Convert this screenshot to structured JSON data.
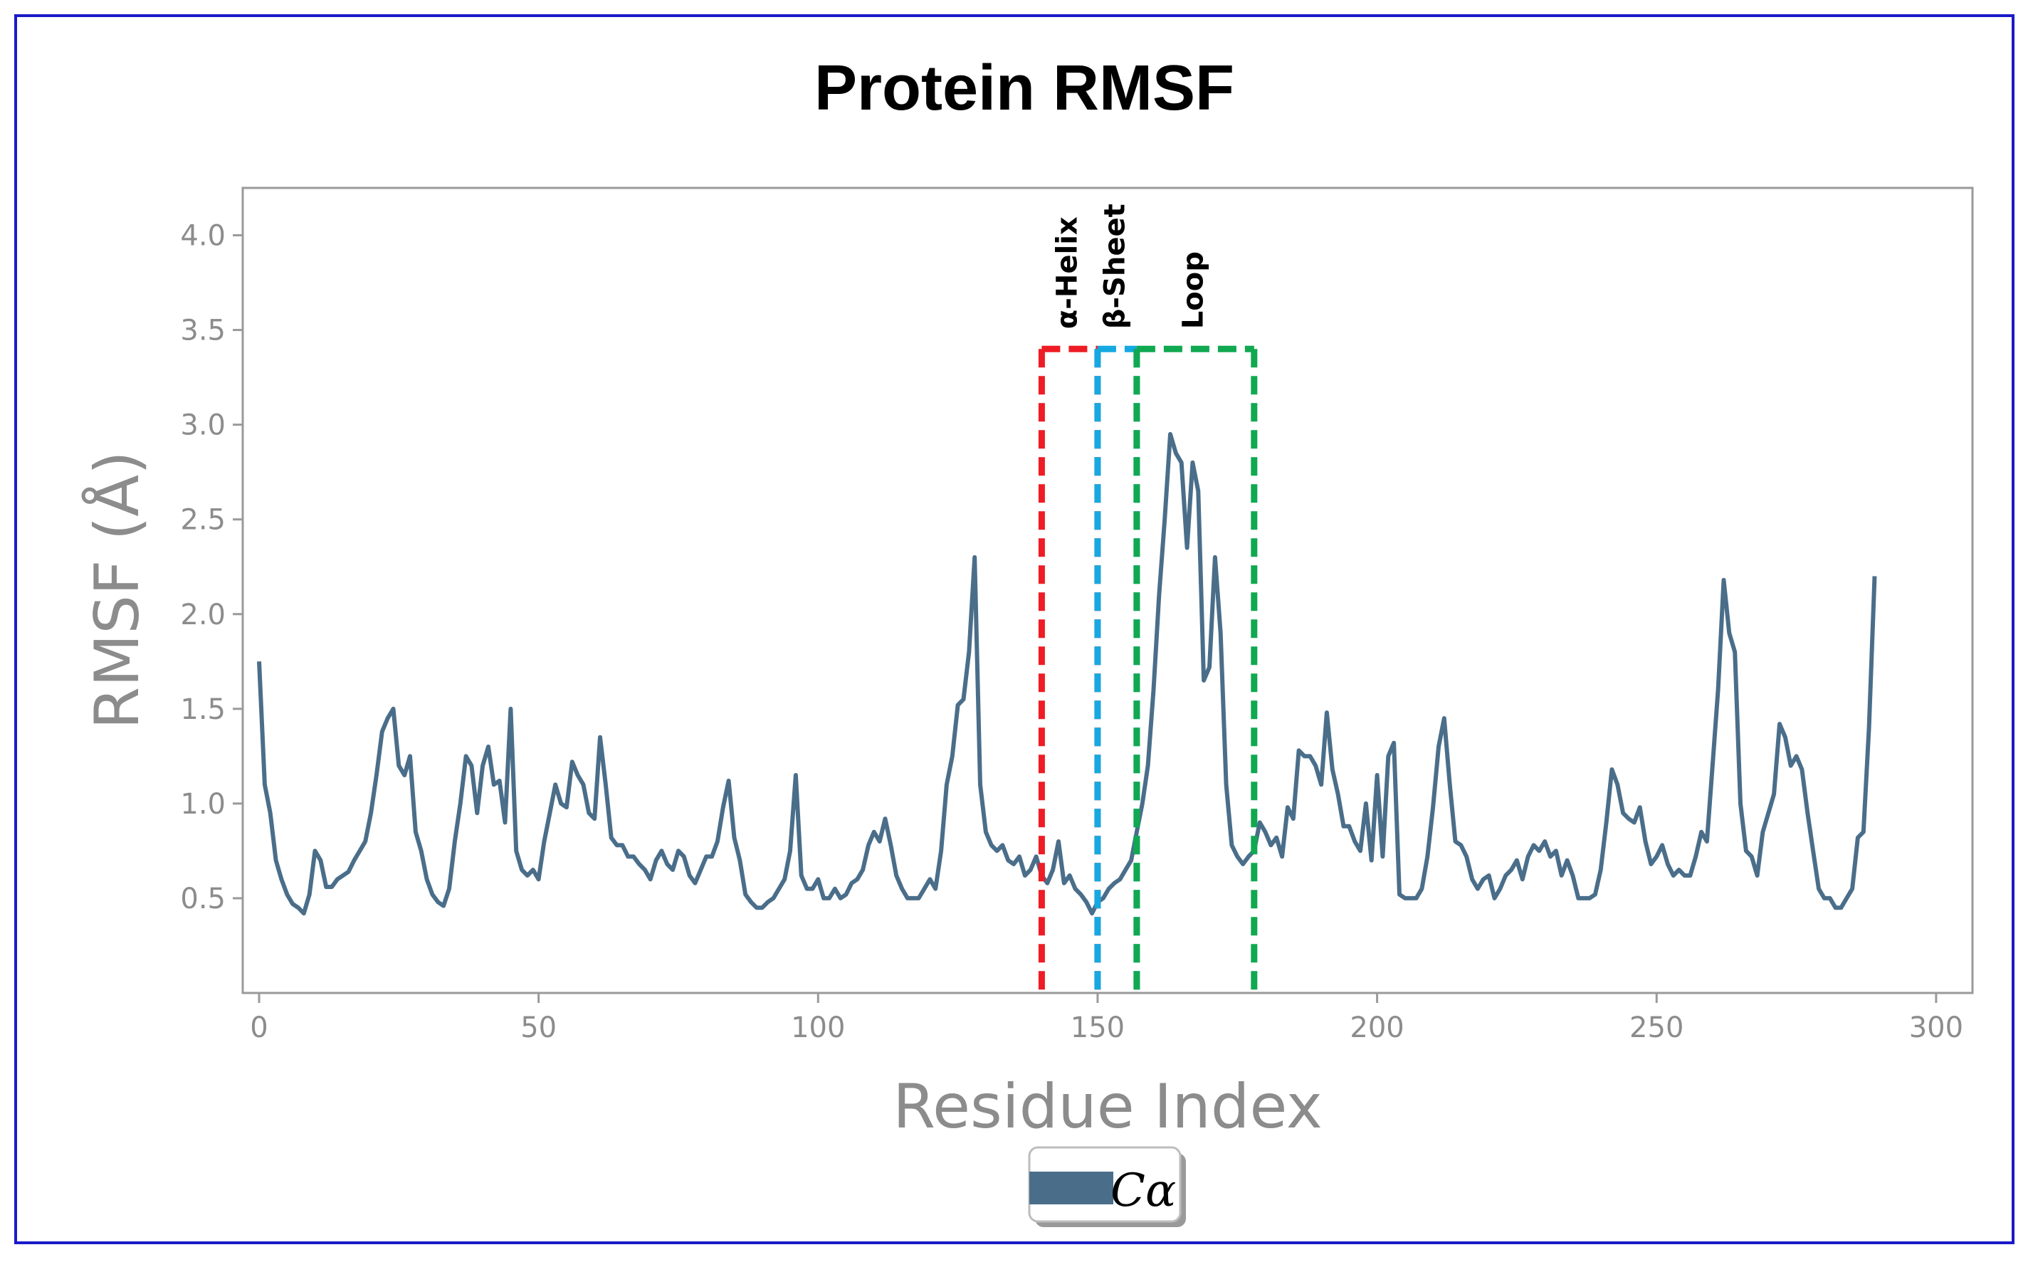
{
  "chart_data": {
    "type": "line",
    "title": "Protein RMSF",
    "xlabel": "Residue Index",
    "ylabel": "RMSF (Å)",
    "xlim": [
      0,
      306
    ],
    "ylim": [
      0,
      4.25
    ],
    "x_ticks": [
      0,
      50,
      100,
      150,
      200,
      250,
      300
    ],
    "y_ticks": [
      0.5,
      1.0,
      1.5,
      2.0,
      2.5,
      3.0,
      3.5,
      4.0
    ],
    "x_tick_labels": [
      "0",
      "50",
      "100",
      "150",
      "200",
      "250",
      "300"
    ],
    "y_tick_labels": [
      "0.5",
      "1.0",
      "1.5",
      "2.0",
      "2.5",
      "3.0",
      "3.5",
      "4.0"
    ],
    "grid": false,
    "legend": {
      "label": "Cα",
      "position": "bottom-center"
    },
    "series": [
      {
        "name": "Cα",
        "color": "#4a6e8a",
        "points": [
          [
            0,
            1.75
          ],
          [
            1,
            1.1
          ],
          [
            2,
            0.95
          ],
          [
            3,
            0.7
          ],
          [
            4,
            0.6
          ],
          [
            5,
            0.52
          ],
          [
            6,
            0.47
          ],
          [
            7,
            0.45
          ],
          [
            8,
            0.42
          ],
          [
            9,
            0.52
          ],
          [
            10,
            0.75
          ],
          [
            11,
            0.7
          ],
          [
            12,
            0.56
          ],
          [
            13,
            0.56
          ],
          [
            14,
            0.6
          ],
          [
            15,
            0.62
          ],
          [
            16,
            0.64
          ],
          [
            17,
            0.7
          ],
          [
            18,
            0.75
          ],
          [
            19,
            0.8
          ],
          [
            20,
            0.95
          ],
          [
            21,
            1.15
          ],
          [
            22,
            1.38
          ],
          [
            23,
            1.45
          ],
          [
            24,
            1.5
          ],
          [
            25,
            1.2
          ],
          [
            26,
            1.15
          ],
          [
            27,
            1.25
          ],
          [
            28,
            0.85
          ],
          [
            29,
            0.75
          ],
          [
            30,
            0.6
          ],
          [
            31,
            0.52
          ],
          [
            32,
            0.48
          ],
          [
            33,
            0.46
          ],
          [
            34,
            0.55
          ],
          [
            35,
            0.8
          ],
          [
            36,
            1.0
          ],
          [
            37,
            1.25
          ],
          [
            38,
            1.2
          ],
          [
            39,
            0.95
          ],
          [
            40,
            1.2
          ],
          [
            41,
            1.3
          ],
          [
            42,
            1.1
          ],
          [
            43,
            1.12
          ],
          [
            44,
            0.9
          ],
          [
            45,
            1.5
          ],
          [
            46,
            0.75
          ],
          [
            47,
            0.65
          ],
          [
            48,
            0.62
          ],
          [
            49,
            0.65
          ],
          [
            50,
            0.6
          ],
          [
            51,
            0.8
          ],
          [
            52,
            0.95
          ],
          [
            53,
            1.1
          ],
          [
            54,
            1.0
          ],
          [
            55,
            0.98
          ],
          [
            56,
            1.22
          ],
          [
            57,
            1.15
          ],
          [
            58,
            1.1
          ],
          [
            59,
            0.95
          ],
          [
            60,
            0.92
          ],
          [
            61,
            1.35
          ],
          [
            62,
            1.1
          ],
          [
            63,
            0.82
          ],
          [
            64,
            0.78
          ],
          [
            65,
            0.78
          ],
          [
            66,
            0.72
          ],
          [
            67,
            0.72
          ],
          [
            68,
            0.68
          ],
          [
            69,
            0.65
          ],
          [
            70,
            0.6
          ],
          [
            71,
            0.7
          ],
          [
            72,
            0.75
          ],
          [
            73,
            0.68
          ],
          [
            74,
            0.65
          ],
          [
            75,
            0.75
          ],
          [
            76,
            0.72
          ],
          [
            77,
            0.62
          ],
          [
            78,
            0.58
          ],
          [
            79,
            0.65
          ],
          [
            80,
            0.72
          ],
          [
            81,
            0.72
          ],
          [
            82,
            0.8
          ],
          [
            83,
            0.98
          ],
          [
            84,
            1.12
          ],
          [
            85,
            0.82
          ],
          [
            86,
            0.7
          ],
          [
            87,
            0.52
          ],
          [
            88,
            0.48
          ],
          [
            89,
            0.45
          ],
          [
            90,
            0.45
          ],
          [
            91,
            0.48
          ],
          [
            92,
            0.5
          ],
          [
            93,
            0.55
          ],
          [
            94,
            0.6
          ],
          [
            95,
            0.75
          ],
          [
            96,
            1.15
          ],
          [
            97,
            0.62
          ],
          [
            98,
            0.55
          ],
          [
            99,
            0.55
          ],
          [
            100,
            0.6
          ],
          [
            101,
            0.5
          ],
          [
            102,
            0.5
          ],
          [
            103,
            0.55
          ],
          [
            104,
            0.5
          ],
          [
            105,
            0.52
          ],
          [
            106,
            0.58
          ],
          [
            107,
            0.6
          ],
          [
            108,
            0.65
          ],
          [
            109,
            0.78
          ],
          [
            110,
            0.85
          ],
          [
            111,
            0.8
          ],
          [
            112,
            0.92
          ],
          [
            113,
            0.78
          ],
          [
            114,
            0.62
          ],
          [
            115,
            0.55
          ],
          [
            116,
            0.5
          ],
          [
            117,
            0.5
          ],
          [
            118,
            0.5
          ],
          [
            119,
            0.55
          ],
          [
            120,
            0.6
          ],
          [
            121,
            0.55
          ],
          [
            122,
            0.75
          ],
          [
            123,
            1.1
          ],
          [
            124,
            1.25
          ],
          [
            125,
            1.52
          ],
          [
            126,
            1.55
          ],
          [
            127,
            1.8
          ],
          [
            128,
            2.3
          ],
          [
            129,
            1.1
          ],
          [
            130,
            0.85
          ],
          [
            131,
            0.78
          ],
          [
            132,
            0.75
          ],
          [
            133,
            0.78
          ],
          [
            134,
            0.7
          ],
          [
            135,
            0.68
          ],
          [
            136,
            0.72
          ],
          [
            137,
            0.62
          ],
          [
            138,
            0.65
          ],
          [
            139,
            0.72
          ],
          [
            140,
            0.62
          ],
          [
            141,
            0.58
          ],
          [
            142,
            0.65
          ],
          [
            143,
            0.8
          ],
          [
            144,
            0.58
          ],
          [
            145,
            0.62
          ],
          [
            146,
            0.55
          ],
          [
            147,
            0.52
          ],
          [
            148,
            0.48
          ],
          [
            149,
            0.42
          ],
          [
            150,
            0.48
          ],
          [
            151,
            0.5
          ],
          [
            152,
            0.55
          ],
          [
            153,
            0.58
          ],
          [
            154,
            0.6
          ],
          [
            155,
            0.65
          ],
          [
            156,
            0.7
          ],
          [
            157,
            0.85
          ],
          [
            158,
            1.0
          ],
          [
            159,
            1.2
          ],
          [
            160,
            1.6
          ],
          [
            161,
            2.1
          ],
          [
            162,
            2.5
          ],
          [
            163,
            2.95
          ],
          [
            164,
            2.85
          ],
          [
            165,
            2.8
          ],
          [
            166,
            2.35
          ],
          [
            167,
            2.8
          ],
          [
            168,
            2.65
          ],
          [
            169,
            1.65
          ],
          [
            170,
            1.72
          ],
          [
            171,
            2.3
          ],
          [
            172,
            1.9
          ],
          [
            173,
            1.1
          ],
          [
            174,
            0.78
          ],
          [
            175,
            0.72
          ],
          [
            176,
            0.68
          ],
          [
            177,
            0.72
          ],
          [
            178,
            0.75
          ],
          [
            179,
            0.9
          ],
          [
            180,
            0.85
          ],
          [
            181,
            0.78
          ],
          [
            182,
            0.82
          ],
          [
            183,
            0.72
          ],
          [
            184,
            0.98
          ],
          [
            185,
            0.92
          ],
          [
            186,
            1.28
          ],
          [
            187,
            1.25
          ],
          [
            188,
            1.25
          ],
          [
            189,
            1.2
          ],
          [
            190,
            1.1
          ],
          [
            191,
            1.48
          ],
          [
            192,
            1.18
          ],
          [
            193,
            1.05
          ],
          [
            194,
            0.88
          ],
          [
            195,
            0.88
          ],
          [
            196,
            0.8
          ],
          [
            197,
            0.75
          ],
          [
            198,
            1.0
          ],
          [
            199,
            0.7
          ],
          [
            200,
            1.15
          ],
          [
            201,
            0.72
          ],
          [
            202,
            1.25
          ],
          [
            203,
            1.32
          ],
          [
            204,
            0.52
          ],
          [
            205,
            0.5
          ],
          [
            206,
            0.5
          ],
          [
            207,
            0.5
          ],
          [
            208,
            0.55
          ],
          [
            209,
            0.72
          ],
          [
            210,
            0.98
          ],
          [
            211,
            1.3
          ],
          [
            212,
            1.45
          ],
          [
            213,
            1.1
          ],
          [
            214,
            0.8
          ],
          [
            215,
            0.78
          ],
          [
            216,
            0.72
          ],
          [
            217,
            0.6
          ],
          [
            218,
            0.55
          ],
          [
            219,
            0.6
          ],
          [
            220,
            0.62
          ],
          [
            221,
            0.5
          ],
          [
            222,
            0.55
          ],
          [
            223,
            0.62
          ],
          [
            224,
            0.65
          ],
          [
            225,
            0.7
          ],
          [
            226,
            0.6
          ],
          [
            227,
            0.72
          ],
          [
            228,
            0.78
          ],
          [
            229,
            0.75
          ],
          [
            230,
            0.8
          ],
          [
            231,
            0.72
          ],
          [
            232,
            0.75
          ],
          [
            233,
            0.62
          ],
          [
            234,
            0.7
          ],
          [
            235,
            0.62
          ],
          [
            236,
            0.5
          ],
          [
            237,
            0.5
          ],
          [
            238,
            0.5
          ],
          [
            239,
            0.52
          ],
          [
            240,
            0.65
          ],
          [
            241,
            0.9
          ],
          [
            242,
            1.18
          ],
          [
            243,
            1.1
          ],
          [
            244,
            0.95
          ],
          [
            245,
            0.92
          ],
          [
            246,
            0.9
          ],
          [
            247,
            0.98
          ],
          [
            248,
            0.8
          ],
          [
            249,
            0.68
          ],
          [
            250,
            0.72
          ],
          [
            251,
            0.78
          ],
          [
            252,
            0.68
          ],
          [
            253,
            0.62
          ],
          [
            254,
            0.65
          ],
          [
            255,
            0.62
          ],
          [
            256,
            0.62
          ],
          [
            257,
            0.72
          ],
          [
            258,
            0.85
          ],
          [
            259,
            0.8
          ],
          [
            260,
            1.2
          ],
          [
            261,
            1.6
          ],
          [
            262,
            2.18
          ],
          [
            263,
            1.9
          ],
          [
            264,
            1.8
          ],
          [
            265,
            1.0
          ],
          [
            266,
            0.75
          ],
          [
            267,
            0.72
          ],
          [
            268,
            0.62
          ],
          [
            269,
            0.85
          ],
          [
            270,
            0.95
          ],
          [
            271,
            1.05
          ],
          [
            272,
            1.42
          ],
          [
            273,
            1.35
          ],
          [
            274,
            1.2
          ],
          [
            275,
            1.25
          ],
          [
            276,
            1.18
          ],
          [
            277,
            0.95
          ],
          [
            278,
            0.75
          ],
          [
            279,
            0.55
          ],
          [
            280,
            0.5
          ],
          [
            281,
            0.5
          ],
          [
            282,
            0.45
          ],
          [
            283,
            0.45
          ],
          [
            284,
            0.5
          ],
          [
            285,
            0.55
          ],
          [
            286,
            0.82
          ],
          [
            287,
            0.85
          ],
          [
            288,
            1.4
          ],
          [
            289,
            2.2
          ]
        ]
      }
    ],
    "annotations": [
      {
        "label": "α-Helix",
        "x_start": 140,
        "x_end": 150,
        "y_top": 3.4,
        "color": "#ee1c24"
      },
      {
        "label": "β-Sheet",
        "x_start": 150,
        "x_end": 157,
        "y_top": 3.4,
        "color": "#16a9e1"
      },
      {
        "label": "Loop",
        "x_start": 157,
        "x_end": 178,
        "y_top": 3.4,
        "color": "#10a850"
      }
    ]
  }
}
